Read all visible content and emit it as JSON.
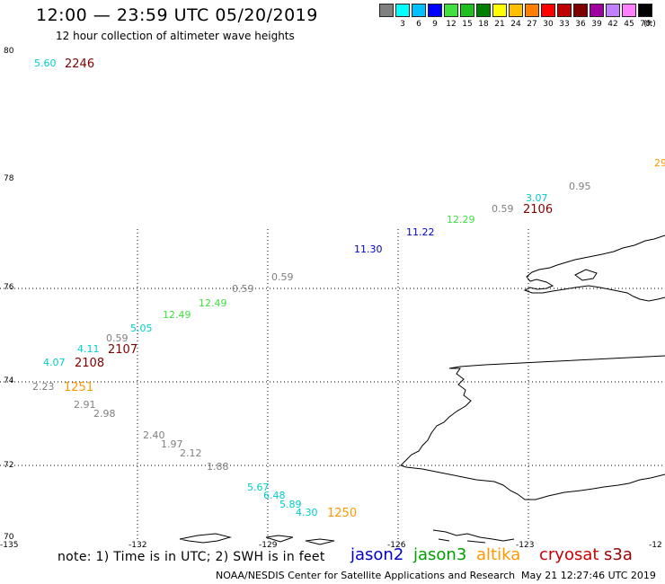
{
  "header": {
    "title": "12:00 — 23:59 UTC 05/20/2019",
    "subtitle": "12 hour collection of altimeter wave heights"
  },
  "legend": {
    "unit_label": "(ft)",
    "bins": [
      {
        "color": "#808080",
        "label": ""
      },
      {
        "color": "#00ffff",
        "label": "3"
      },
      {
        "color": "#00c0ff",
        "label": "6"
      },
      {
        "color": "#0000ff",
        "label": "9"
      },
      {
        "color": "#40e040",
        "label": "12"
      },
      {
        "color": "#20c020",
        "label": "15"
      },
      {
        "color": "#008000",
        "label": "18"
      },
      {
        "color": "#ffff00",
        "label": "21"
      },
      {
        "color": "#ffc000",
        "label": "24"
      },
      {
        "color": "#ff8000",
        "label": "27"
      },
      {
        "color": "#ff0000",
        "label": "30"
      },
      {
        "color": "#c00000",
        "label": "33"
      },
      {
        "color": "#800000",
        "label": "36"
      },
      {
        "color": "#a000a0",
        "label": "39"
      },
      {
        "color": "#c080ff",
        "label": "42"
      },
      {
        "color": "#ff80ff",
        "label": "45"
      },
      {
        "color": "#000000",
        "label": "70"
      }
    ]
  },
  "map": {
    "lat_labels": [
      "80",
      "78",
      "76",
      "74",
      "72",
      "70"
    ],
    "lon_labels": [
      "-135",
      "-132",
      "-129",
      "-126",
      "-123",
      "-12"
    ],
    "observations": [
      {
        "text": "5.60",
        "color": "#00cccc",
        "kind": "value"
      },
      {
        "text": "2246",
        "color": "#800000",
        "kind": "time"
      },
      {
        "text": "29",
        "color": "#ff9900",
        "kind": "value"
      },
      {
        "text": "0.95",
        "color": "#808080",
        "kind": "value"
      },
      {
        "text": "3.07",
        "color": "#00cccc",
        "kind": "value"
      },
      {
        "text": "0.59",
        "color": "#808080",
        "kind": "value"
      },
      {
        "text": "2106",
        "color": "#800000",
        "kind": "time"
      },
      {
        "text": "12.29",
        "color": "#40e040",
        "kind": "value"
      },
      {
        "text": "11.22",
        "color": "#0000cc",
        "kind": "value"
      },
      {
        "text": "11.30",
        "color": "#0000cc",
        "kind": "value"
      },
      {
        "text": "0.59",
        "color": "#808080",
        "kind": "value"
      },
      {
        "text": "12.49",
        "color": "#40e040",
        "kind": "value"
      },
      {
        "text": "0.59",
        "color": "#808080",
        "kind": "value"
      },
      {
        "text": "12.49",
        "color": "#40e040",
        "kind": "value"
      },
      {
        "text": "5.05",
        "color": "#00cccc",
        "kind": "value"
      },
      {
        "text": "0.59",
        "color": "#808080",
        "kind": "value"
      },
      {
        "text": "4.11",
        "color": "#00cccc",
        "kind": "value"
      },
      {
        "text": "2107",
        "color": "#800000",
        "kind": "time"
      },
      {
        "text": "4.07",
        "color": "#00cccc",
        "kind": "value"
      },
      {
        "text": "2108",
        "color": "#800000",
        "kind": "time"
      },
      {
        "text": "2.23",
        "color": "#808080",
        "kind": "value"
      },
      {
        "text": "1251",
        "color": "#ff9900",
        "kind": "time"
      },
      {
        "text": "2.91",
        "color": "#808080",
        "kind": "value"
      },
      {
        "text": "2.98",
        "color": "#808080",
        "kind": "value"
      },
      {
        "text": "2.40",
        "color": "#808080",
        "kind": "value"
      },
      {
        "text": "1.97",
        "color": "#808080",
        "kind": "value"
      },
      {
        "text": "2.12",
        "color": "#808080",
        "kind": "value"
      },
      {
        "text": "1.88",
        "color": "#808080",
        "kind": "value"
      },
      {
        "text": "5.67",
        "color": "#00cccc",
        "kind": "value"
      },
      {
        "text": "6.48",
        "color": "#00cccc",
        "kind": "value"
      },
      {
        "text": "5.89",
        "color": "#00cccc",
        "kind": "value"
      },
      {
        "text": "4.30",
        "color": "#00cccc",
        "kind": "value"
      },
      {
        "text": "1250",
        "color": "#ff9900",
        "kind": "time"
      }
    ]
  },
  "footer": {
    "note": "note: 1) Time is in UTC; 2) SWH is in feet",
    "satellites": [
      {
        "name": "jason2",
        "color": "#0000cc"
      },
      {
        "name": "jason3",
        "color": "#00a000"
      },
      {
        "name": "altika",
        "color": "#ff9900"
      },
      {
        "name": "cryosat",
        "color": "#cc0000"
      },
      {
        "name": "s3a",
        "color": "#990000"
      }
    ],
    "credit": "NOAA/NESDIS Center for Satellite Applications and Research",
    "timestamp": "May 21 12:27:46 UTC 2019"
  }
}
